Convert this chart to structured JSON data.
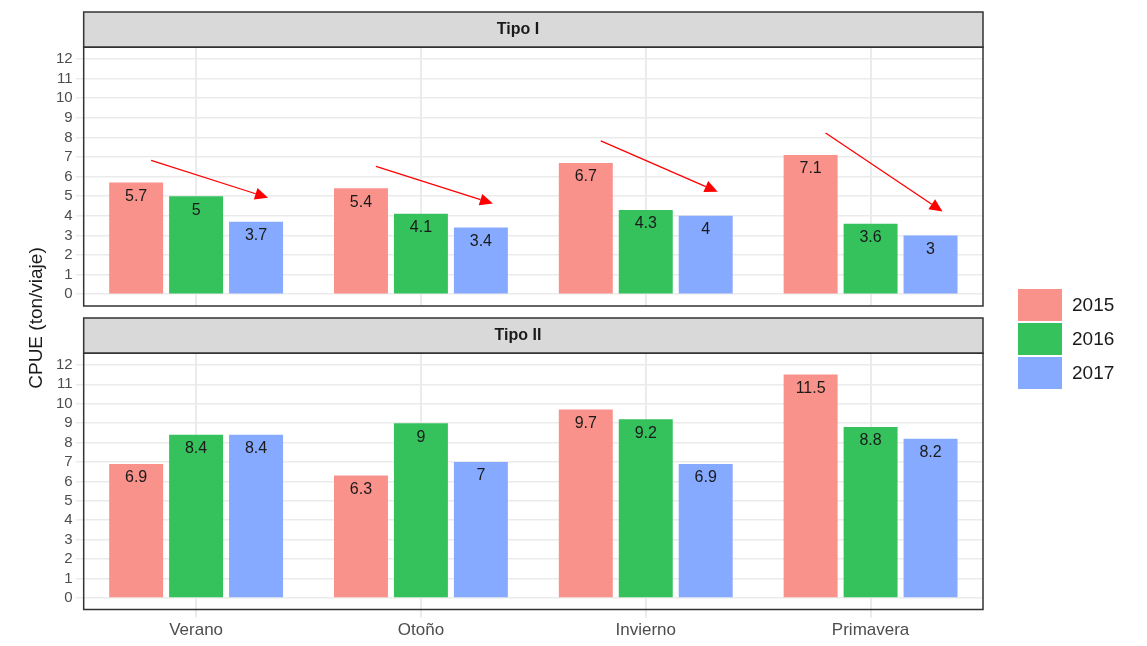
{
  "chart_data": [
    {
      "type": "bar",
      "title": "Tipo I",
      "ylabel": "CPUE (ton/viaje)",
      "categories": [
        null,
        null,
        null,
        null
      ],
      "series": [
        {
          "name": "2015",
          "color": "#f8928b",
          "values": [
            5.7,
            5.4,
            6.7,
            7.1
          ]
        },
        {
          "name": "2016",
          "color": "#35c25c",
          "values": [
            5,
            4.1,
            4.3,
            3.6
          ]
        },
        {
          "name": "2017",
          "color": "#85aaff",
          "values": [
            3.7,
            3.4,
            4,
            3
          ]
        }
      ],
      "ylim": [
        -0.6,
        12.6
      ],
      "yticks": [
        0,
        1,
        2,
        3,
        4,
        5,
        6,
        7,
        8,
        9,
        10,
        11,
        12
      ],
      "grid": true,
      "legend": "right",
      "data_labels": true,
      "tick_labels": "y"
    },
    {
      "type": "bar",
      "title": "Tipo II",
      "categories": [
        "Verano",
        "Otoño",
        "Invierno",
        "Primavera"
      ],
      "series": [
        {
          "name": "2015",
          "color": "#f8928b",
          "values": [
            6.9,
            6.3,
            9.7,
            11.5
          ]
        },
        {
          "name": "2016",
          "color": "#35c25c",
          "values": [
            8.4,
            9,
            9.2,
            8.8
          ]
        },
        {
          "name": "2017",
          "color": "#85aaff",
          "values": [
            8.4,
            7,
            6.9,
            8.2
          ]
        }
      ],
      "ylim": [
        -0.6,
        12.6
      ],
      "yticks": [
        0,
        1,
        2,
        3,
        4,
        5,
        6,
        7,
        8,
        9,
        10,
        11,
        12
      ],
      "grid": true,
      "legend": "right",
      "data_labels": true
    }
  ]
}
